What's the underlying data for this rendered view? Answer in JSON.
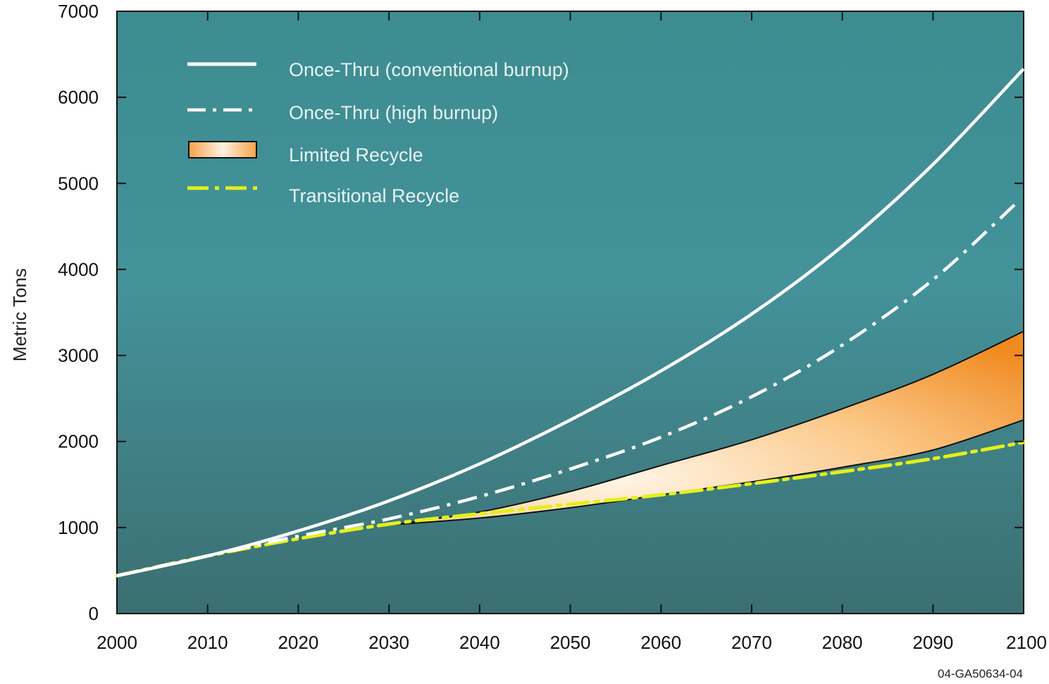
{
  "chart_data": {
    "type": "line",
    "title": "",
    "xlabel": "",
    "ylabel": "Metric Tons",
    "xlim": [
      2000,
      2100
    ],
    "ylim": [
      0,
      7000
    ],
    "x_ticks": [
      2000,
      2010,
      2020,
      2030,
      2040,
      2050,
      2060,
      2070,
      2080,
      2090,
      2100
    ],
    "y_ticks": [
      0,
      1000,
      2000,
      3000,
      4000,
      5000,
      6000,
      7000
    ],
    "grid": false,
    "legend_position": "top-left",
    "background_color": "#3f8c8f",
    "x": [
      2000,
      2010,
      2020,
      2030,
      2040,
      2050,
      2060,
      2070,
      2080,
      2090,
      2100
    ],
    "series": [
      {
        "name": "Once-Thru (conventional burnup)",
        "style": "solid",
        "color": "#ffffff",
        "values": [
          440,
          670,
          960,
          1310,
          1740,
          2250,
          2820,
          3480,
          4270,
          5220,
          6330
        ]
      },
      {
        "name": "Once-Thru (high burnup)",
        "style": "dash-dot",
        "color": "#ffffff",
        "values": [
          440,
          670,
          900,
          1100,
          1360,
          1680,
          2050,
          2520,
          3120,
          3880,
          null
        ],
        "x_end": 2099,
        "value_end": 4750
      },
      {
        "name": "Limited Recycle",
        "style": "band",
        "color": "#f5a55a",
        "x_start": 2030,
        "lower": [
          null,
          null,
          null,
          1030,
          1110,
          1230,
          1380,
          1530,
          1700,
          1900,
          2250
        ],
        "upper": [
          null,
          null,
          null,
          1030,
          1180,
          1420,
          1720,
          2020,
          2380,
          2780,
          3280
        ]
      },
      {
        "name": "Transitional Recycle",
        "style": "dash-dot",
        "color": "#e4ef1c",
        "values": [
          440,
          670,
          870,
          1040,
          1160,
          1270,
          1380,
          1510,
          1650,
          1800,
          1990
        ]
      }
    ],
    "annotations": [
      "04-GA50634-04"
    ]
  }
}
